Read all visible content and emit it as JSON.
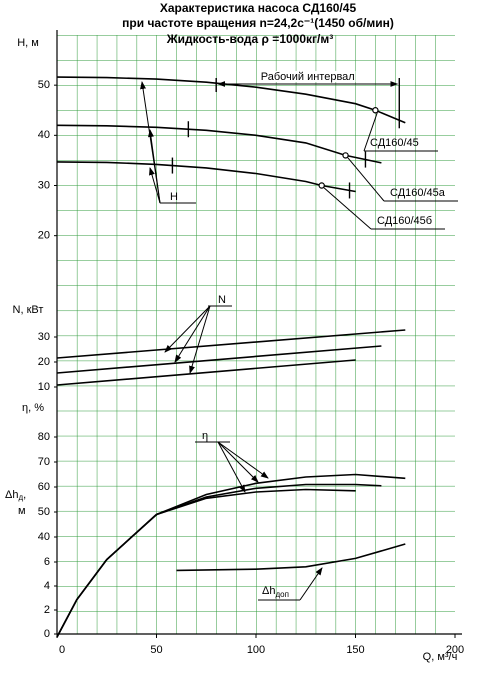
{
  "header": {
    "lines": [
      "Характеристика насоса СД160/45",
      "при частоте вращения n=24,2с⁻¹(1450 об/мин)",
      "Жидкость-вода ρ =1000кг/м³"
    ]
  },
  "chart_data": [
    {
      "type": "line",
      "y_label": "H, м",
      "xlim": [
        0,
        200
      ],
      "ylim": [
        0,
        60
      ],
      "yticks": [
        20,
        30,
        40,
        50
      ],
      "range_label": "Рабочий интервал",
      "annotation": "Н",
      "series": [
        {
          "name": "СД160/45",
          "color": "#000000",
          "x": [
            0,
            25,
            50,
            75,
            100,
            125,
            150,
            160,
            175
          ],
          "values": [
            51.6,
            51.5,
            51.2,
            50.6,
            49.6,
            48.2,
            46.3,
            45,
            42.5
          ],
          "point": [
            160,
            45
          ],
          "work_range": [
            80,
            172
          ]
        },
        {
          "name": "СД160/45а",
          "color": "#000000",
          "x": [
            0,
            25,
            50,
            75,
            100,
            125,
            145,
            163
          ],
          "values": [
            42,
            41.9,
            41.6,
            41,
            40,
            38.5,
            36,
            34.5
          ],
          "point": [
            145,
            36
          ],
          "work_range": [
            66,
            155
          ]
        },
        {
          "name": "СД160/45б",
          "color": "#000000",
          "x": [
            0,
            25,
            50,
            75,
            100,
            125,
            133,
            150
          ],
          "values": [
            34.7,
            34.6,
            34.2,
            33.5,
            32.4,
            30.8,
            30,
            28.8
          ],
          "point": [
            133,
            30
          ],
          "work_range": [
            58,
            147
          ]
        }
      ]
    },
    {
      "type": "line",
      "y_label": "N, кВт",
      "xlim": [
        0,
        200
      ],
      "ylim": [
        0,
        40
      ],
      "yticks": [
        10,
        20,
        30
      ],
      "annotation": "N",
      "series": [
        {
          "color": "#000000",
          "x": [
            0,
            175
          ],
          "values": [
            21.6,
            32.8
          ]
        },
        {
          "color": "#000000",
          "x": [
            0,
            163
          ],
          "values": [
            15.6,
            26.4
          ]
        },
        {
          "color": "#000000",
          "x": [
            0,
            150
          ],
          "values": [
            10.8,
            20.8
          ]
        }
      ]
    },
    {
      "type": "line",
      "y_label": "η, %",
      "xlim": [
        0,
        200
      ],
      "ylim": [
        0,
        80
      ],
      "yticks": [
        40,
        50,
        60,
        70,
        80
      ],
      "annotation": "η",
      "series": [
        {
          "color": "#000000",
          "x": [
            0,
            10,
            25,
            50,
            75,
            100,
            125,
            150,
            175
          ],
          "values": [
            0,
            15,
            31,
            49,
            57,
            61.5,
            64,
            65,
            63.5
          ]
        },
        {
          "color": "#000000",
          "x": [
            0,
            10,
            25,
            50,
            75,
            100,
            125,
            150,
            163
          ],
          "values": [
            0,
            15,
            31,
            49,
            56,
            59.5,
            61,
            61,
            60.5
          ]
        },
        {
          "color": "#000000",
          "x": [
            0,
            10,
            25,
            50,
            75,
            100,
            125,
            150
          ],
          "values": [
            0,
            15,
            31,
            49,
            55.5,
            58,
            59,
            58.5
          ]
        }
      ]
    },
    {
      "type": "line",
      "y_label": {
        "main": "Δh",
        "sub": "д",
        "tail": ",",
        "line2": "м"
      },
      "xlim": [
        0,
        200
      ],
      "ylim": [
        0,
        8
      ],
      "yticks": [
        0,
        2,
        4,
        6
      ],
      "xticks": [
        0,
        50,
        100,
        150,
        200
      ],
      "x_label": "Q, м³/ч",
      "annotation": {
        "main": "Δh",
        "sub": "доп"
      },
      "series": [
        {
          "color": "#000000",
          "x": [
            60,
            100,
            125,
            150,
            175
          ],
          "values": [
            5.3,
            5.4,
            5.6,
            6.3,
            7.5
          ]
        }
      ]
    }
  ]
}
